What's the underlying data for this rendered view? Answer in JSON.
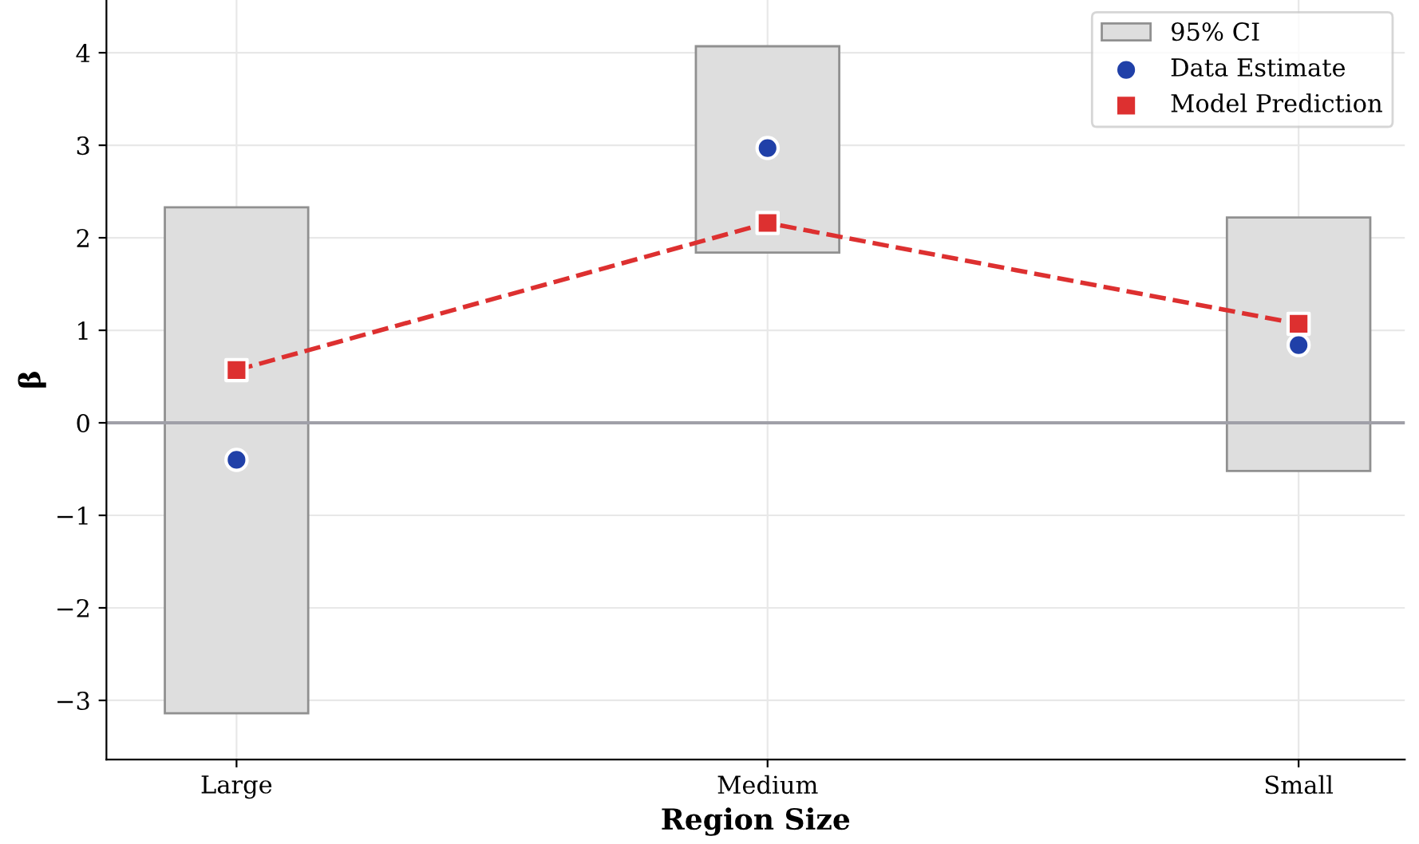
{
  "chart_data": {
    "type": "bar",
    "xlabel": "Region Size",
    "ylabel": "β",
    "categories": [
      "Large",
      "Medium",
      "Small"
    ],
    "series": [
      {
        "name": "95% CI",
        "color": "#dedede",
        "base": [
          -3.14,
          1.84,
          -0.52
        ],
        "values": [
          5.47,
          2.23,
          2.74
        ]
      },
      {
        "name": "Data Estimate",
        "type": "scatter",
        "color": "#2040a8",
        "marker": "circle",
        "values": [
          -0.4,
          2.97,
          0.84
        ]
      },
      {
        "name": "Model Prediction",
        "type": "line",
        "color": "#dd3030",
        "marker": "square",
        "line_style": "dashed",
        "values": [
          0.57,
          2.16,
          1.07
        ]
      }
    ],
    "ylim": [
      -3.64,
      4.57
    ],
    "yticks": [
      {
        "value": -3,
        "label": "−3"
      },
      {
        "value": -2,
        "label": "−2"
      },
      {
        "value": -1,
        "label": "−1"
      },
      0,
      1,
      2,
      3,
      4
    ],
    "ref_lines": [
      {
        "axis": "y",
        "value": 0,
        "color": "#a0a0a8"
      }
    ],
    "grid": true,
    "legend": "top right"
  }
}
